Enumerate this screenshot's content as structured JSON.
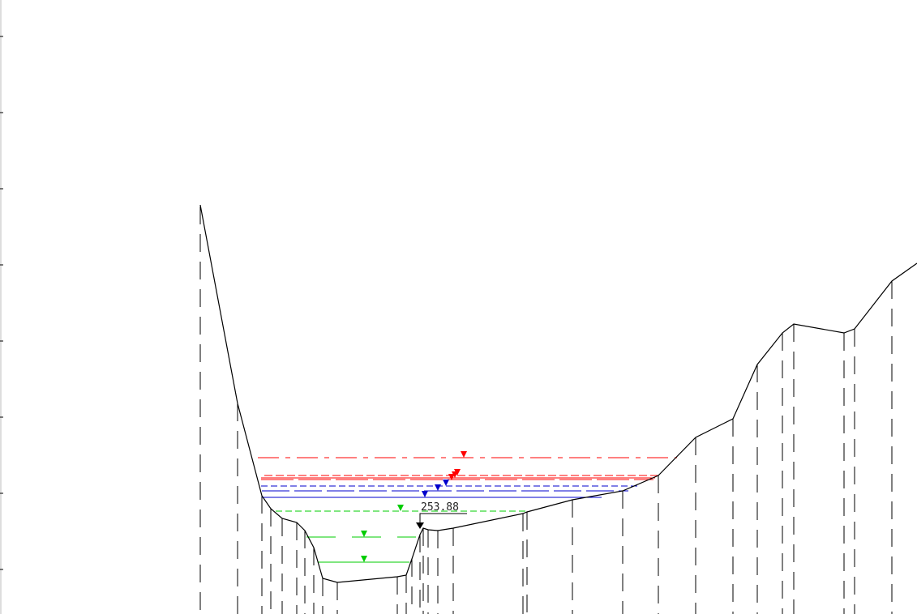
{
  "diagram": {
    "annotation_value": "253.88",
    "colors": {
      "terrain": "#000000",
      "red": "#ff0000",
      "blue": "#0000cc",
      "green": "#00cc00",
      "marker": "#000000"
    }
  }
}
